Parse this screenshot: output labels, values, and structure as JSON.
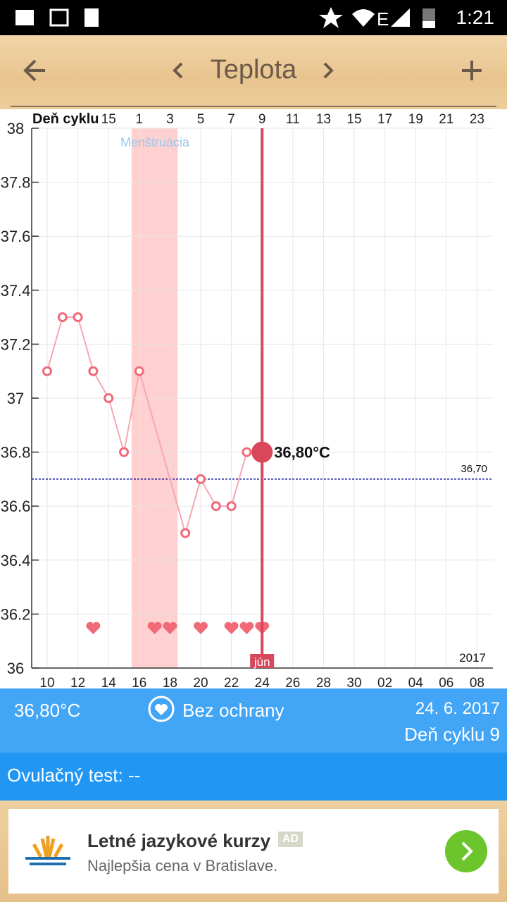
{
  "status_bar": {
    "time": "1:21"
  },
  "app_bar": {
    "title": "Teplota"
  },
  "chart_data": {
    "type": "line",
    "top_axis_label": "Deň cyklu",
    "categories": [
      "10",
      null,
      "12",
      null,
      "14",
      null,
      "16",
      null,
      "18",
      null,
      "20",
      null,
      "22",
      null,
      "24",
      null,
      "26",
      null,
      "28",
      null,
      "30",
      null,
      "02",
      null,
      "04",
      null,
      "06",
      null,
      "08"
    ],
    "cycle_days": [
      null,
      null,
      null,
      null,
      "15",
      null,
      "1",
      null,
      "3",
      null,
      "5",
      null,
      "7",
      null,
      "9",
      null,
      "11",
      null,
      "13",
      null,
      "15",
      null,
      "17",
      null,
      "19",
      null,
      "21",
      null,
      "23"
    ],
    "series": [
      {
        "name": "Teplota",
        "color": "#f06a78",
        "values": [
          37.1,
          37.3,
          37.3,
          37.1,
          37.0,
          36.8,
          37.1,
          null,
          null,
          36.5,
          36.7,
          36.6,
          36.6,
          36.8,
          36.8,
          null,
          null,
          null,
          null,
          null,
          null,
          null,
          null,
          null,
          null,
          null,
          null,
          null,
          null
        ]
      }
    ],
    "hearts": [
      false,
      false,
      false,
      true,
      false,
      false,
      false,
      true,
      true,
      false,
      true,
      false,
      true,
      true,
      true,
      false,
      false,
      false,
      false,
      false,
      false,
      false,
      false,
      false,
      false,
      false,
      false,
      false,
      false
    ],
    "menstruation": {
      "label": "Menštruácia",
      "color": "#ffd0d0",
      "days": [
        false,
        false,
        false,
        false,
        false,
        false,
        true,
        true,
        true,
        false,
        false,
        false,
        false,
        false,
        false,
        false,
        false,
        false,
        false,
        false,
        false,
        false,
        false,
        false,
        false,
        false,
        false,
        false,
        false
      ]
    },
    "selected_index": 14,
    "selected_label": "36,80°C",
    "month_label": "jún",
    "year_label": "2017",
    "reference_line": {
      "value": 36.7,
      "label": "36,70",
      "color": "#1a1aa0"
    },
    "ylim": [
      36,
      38
    ],
    "yticks": [
      36,
      36.2,
      36.4,
      36.6,
      36.8,
      37,
      37.2,
      37.4,
      37.6,
      37.8,
      38
    ],
    "grid": true
  },
  "info": {
    "temperature": "36,80°C",
    "protection": "Bez ochrany",
    "date": "24. 6. 2017",
    "cycle_day": "Deň cyklu 9"
  },
  "ovulation": {
    "label": "Ovulačný test: --"
  },
  "ad": {
    "title": "Letné jazykové kurzy",
    "badge": "AD",
    "subtitle": "Najlepšia cena v Bratislave."
  }
}
